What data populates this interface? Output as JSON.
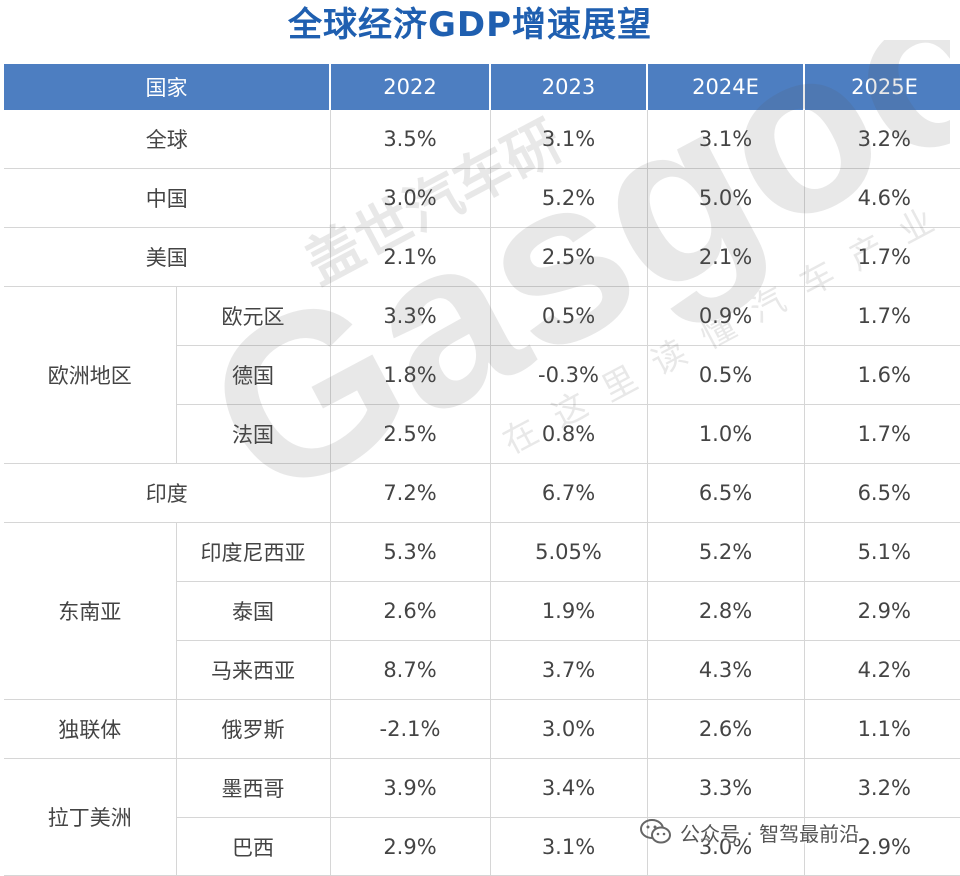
{
  "title": "全球经济GDP增速展望",
  "columns": [
    "国家",
    "2022",
    "2023",
    "2024E",
    "2025E"
  ],
  "rows": {
    "global": {
      "name": "全球",
      "v": [
        "3.5%",
        "3.1%",
        "3.1%",
        "3.2%"
      ]
    },
    "china": {
      "name": "中国",
      "v": [
        "3.0%",
        "5.2%",
        "5.0%",
        "4.6%"
      ]
    },
    "usa": {
      "name": "美国",
      "v": [
        "2.1%",
        "2.5%",
        "2.1%",
        "1.7%"
      ]
    },
    "europe": {
      "region": "欧洲地区",
      "items": [
        {
          "name": "欧元区",
          "v": [
            "3.3%",
            "0.5%",
            "0.9%",
            "1.7%"
          ]
        },
        {
          "name": "德国",
          "v": [
            "1.8%",
            "-0.3%",
            "0.5%",
            "1.6%"
          ]
        },
        {
          "name": "法国",
          "v": [
            "2.5%",
            "0.8%",
            "1.0%",
            "1.7%"
          ]
        }
      ]
    },
    "india": {
      "name": "印度",
      "v": [
        "7.2%",
        "6.7%",
        "6.5%",
        "6.5%"
      ]
    },
    "sea": {
      "region": "东南亚",
      "items": [
        {
          "name": "印度尼西亚",
          "v": [
            "5.3%",
            "5.05%",
            "5.2%",
            "5.1%"
          ]
        },
        {
          "name": "泰国",
          "v": [
            "2.6%",
            "1.9%",
            "2.8%",
            "2.9%"
          ]
        },
        {
          "name": "马来西亚",
          "v": [
            "8.7%",
            "3.7%",
            "4.3%",
            "4.2%"
          ]
        }
      ]
    },
    "cis": {
      "region": "独联体",
      "items": [
        {
          "name": "俄罗斯",
          "v": [
            "-2.1%",
            "3.0%",
            "2.6%",
            "1.1%"
          ]
        }
      ]
    },
    "latam": {
      "region": "拉丁美洲",
      "items": [
        {
          "name": "墨西哥",
          "v": [
            "3.9%",
            "3.4%",
            "3.3%",
            "3.2%"
          ]
        },
        {
          "name": "巴西",
          "v": [
            "2.9%",
            "3.1%",
            "3.0%",
            "2.9%"
          ]
        }
      ]
    }
  },
  "watermark": {
    "brand": "Gasgoo",
    "cn_brand": "盖世汽车研",
    "slogan": "在这里读懂汽车产业"
  },
  "footer": {
    "icon": "wechat-icon",
    "text": "公众号 · 智驾最前沿"
  },
  "colors": {
    "header_bg": "#4d7ec1",
    "title": "#1f5fb0"
  }
}
